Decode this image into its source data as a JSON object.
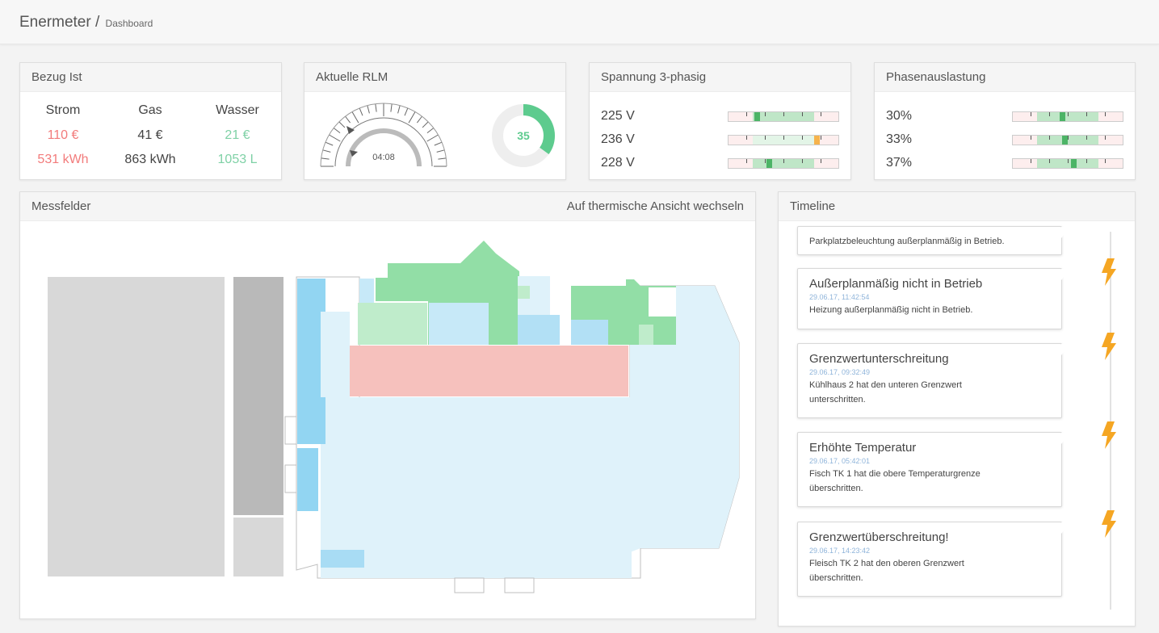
{
  "header": {
    "brand": "Enermeter /",
    "crumb": "Dashboard"
  },
  "bezug": {
    "title": "Bezug Ist",
    "columns": [
      {
        "label": "Strom",
        "cost": "110 €",
        "amount": "531 kWh"
      },
      {
        "label": "Gas",
        "cost": "41 €",
        "amount": "863 kWh"
      },
      {
        "label": "Wasser",
        "cost": "21 €",
        "amount": "1053 L"
      }
    ]
  },
  "rlm": {
    "title": "Aktuelle RLM",
    "time": "04:08",
    "donut_value": "35",
    "donut_fraction": 0.35
  },
  "spannung": {
    "title": "Spannung 3-phasig",
    "rows": [
      {
        "label": "225 V",
        "level": 0.26,
        "state": "ok"
      },
      {
        "label": "236 V",
        "level": 0.8,
        "state": "warn"
      },
      {
        "label": "228 V",
        "level": 0.37,
        "state": "ok"
      }
    ]
  },
  "phasen": {
    "title": "Phasenauslastung",
    "rows": [
      {
        "label": "30%",
        "level": 0.45
      },
      {
        "label": "33%",
        "level": 0.47
      },
      {
        "label": "37%",
        "level": 0.55
      }
    ]
  },
  "messfelder": {
    "title": "Messfelder",
    "action": "Auf thermische Ansicht wechseln"
  },
  "timeline": {
    "title": "Timeline",
    "partial_text": "Parkplatzbeleuchtung außerplanmäßig in Betrieb.",
    "items": [
      {
        "title": "Außerplanmäßig nicht in Betrieb",
        "time": "29.06.17, 11:42:54",
        "text": "Heizung außerplanmäßig nicht in Betrieb."
      },
      {
        "title": "Grenzwertunterschreitung",
        "time": "29.06.17, 09:32:49",
        "text": "Kühlhaus 2 hat den unteren Grenzwert unterschritten."
      },
      {
        "title": "Erhöhte Temperatur",
        "time": "29.06.17, 05:42:01",
        "text": "Fisch TK 1 hat die obere Temperaturgrenze überschritten."
      },
      {
        "title": "Grenzwertüberschreitung!",
        "time": "29.06.17, 14:23:42",
        "text": "Fleisch TK 2 hat den oberen Grenzwert überschritten."
      }
    ]
  },
  "colors": {
    "red": "#f27b7b",
    "green": "#7fd1a6",
    "bolt": "#f5a623",
    "link": "#8fb4da"
  }
}
